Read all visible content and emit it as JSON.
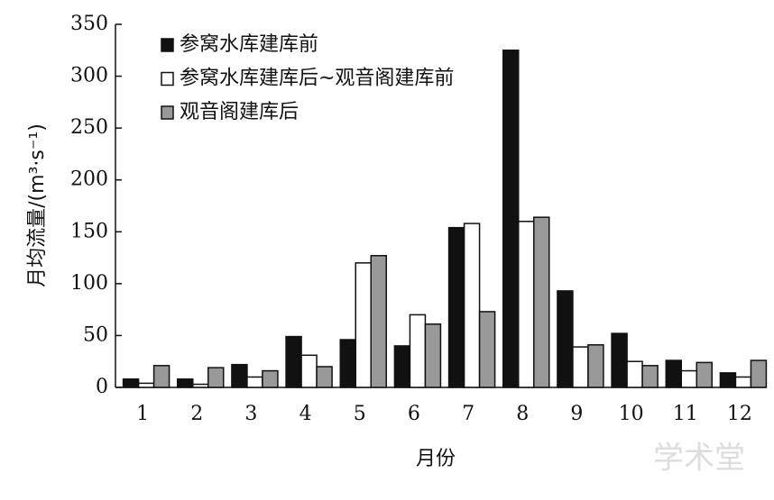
{
  "chart_data": {
    "type": "bar",
    "x_label": "月份",
    "y_label": "月均流量/(m³·s⁻¹)",
    "categories": [
      "1",
      "2",
      "3",
      "4",
      "5",
      "6",
      "7",
      "8",
      "9",
      "10",
      "11",
      "12"
    ],
    "series": [
      {
        "name": "参窝水库建库前",
        "color": "#111111",
        "values": [
          8,
          8,
          22,
          49,
          46,
          40,
          154,
          325,
          93,
          52,
          26,
          14
        ]
      },
      {
        "name": "参窝水库建库后~观音阁建库前",
        "color": "#ffffff",
        "values": [
          4,
          3,
          10,
          31,
          120,
          70,
          158,
          160,
          39,
          25,
          16,
          10
        ]
      },
      {
        "name": "观音阁建库后",
        "color": "#999999",
        "values": [
          21,
          19,
          16,
          20,
          127,
          61,
          73,
          164,
          41,
          21,
          24,
          26
        ]
      }
    ],
    "ylim": [
      0,
      350
    ],
    "yticks": [
      0,
      50,
      100,
      150,
      200,
      250,
      300,
      350
    ],
    "legend": "upper-left",
    "watermark": "学术堂"
  }
}
